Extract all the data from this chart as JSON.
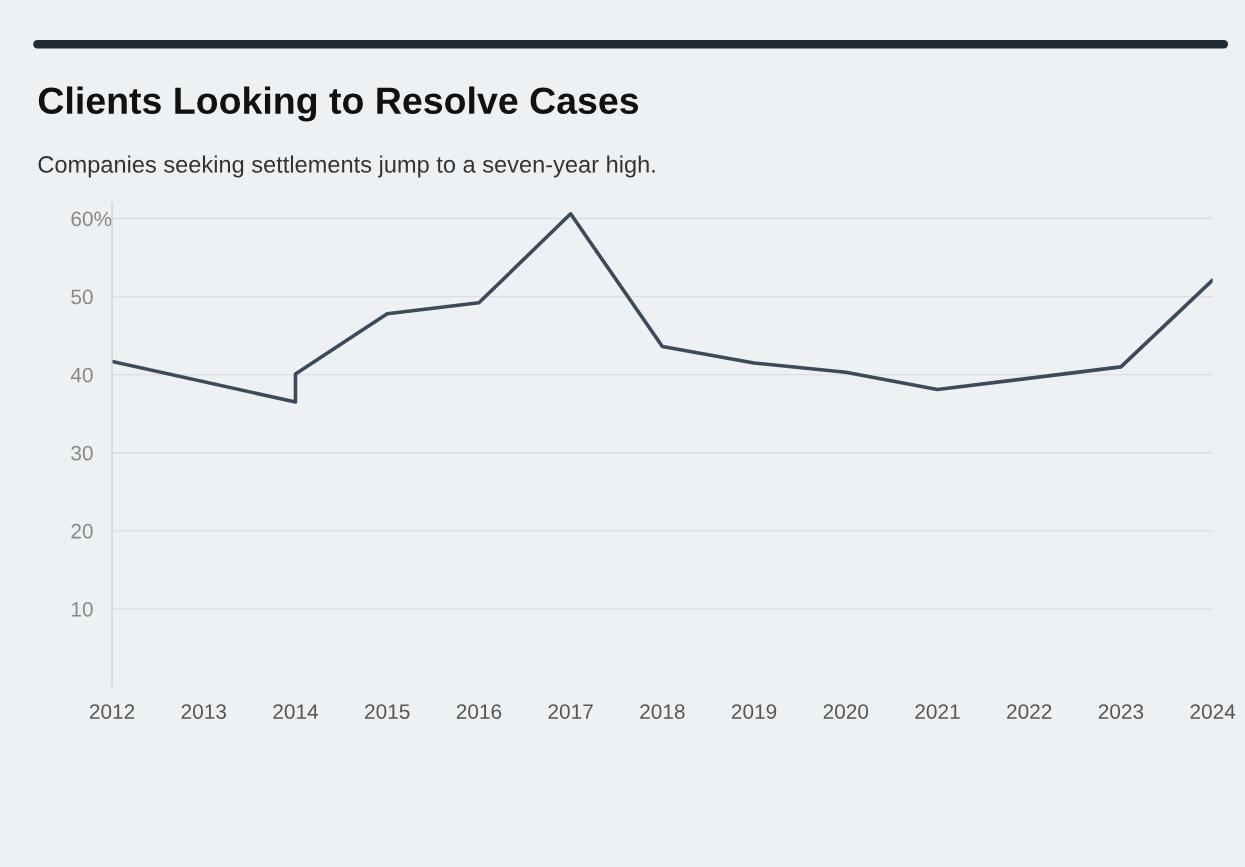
{
  "chart_data": {
    "type": "line",
    "title": "Clients Looking to Resolve Cases",
    "subtitle": "Companies seeking settlements jump to a seven-year high.",
    "x": [
      2012,
      2014,
      2014,
      2015,
      2016,
      2017,
      2018,
      2019,
      2020,
      2021,
      2023,
      2024
    ],
    "series": [
      {
        "color": "#3d4a5a",
        "values": [
          41.7,
          36.5,
          40.1,
          47.8,
          49.2,
          60.6,
          43.6,
          41.5,
          40.3,
          38.1,
          41.0,
          52.1
        ]
      }
    ],
    "xlim": [
      2012,
      2024
    ],
    "xticks": [
      2012,
      2013,
      2014,
      2015,
      2016,
      2017,
      2018,
      2019,
      2020,
      2021,
      2022,
      2023,
      2024
    ],
    "ylim": [
      0,
      62
    ],
    "yticks": [
      10,
      20,
      30,
      40,
      50,
      {
        "value": 60,
        "label": "60%"
      }
    ],
    "grid": "y",
    "marker": "none",
    "line_style": "solid"
  }
}
